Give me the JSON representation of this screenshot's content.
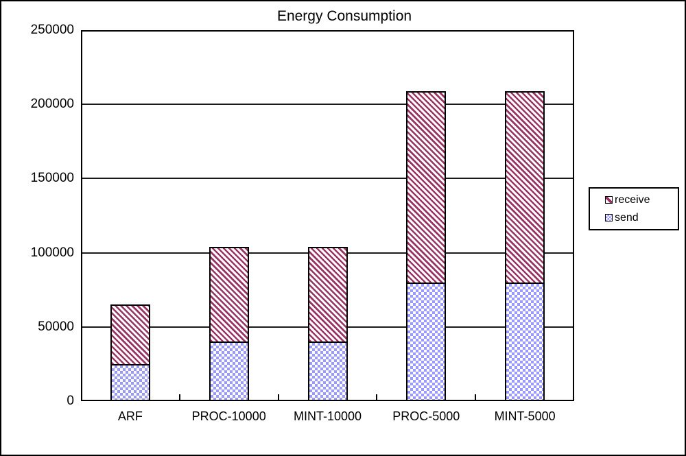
{
  "title": "Energy Consumption",
  "chart_data": {
    "type": "bar",
    "stacked": true,
    "title": "Energy Consumption",
    "categories": [
      "ARF",
      "PROC-10000",
      "MINT-10000",
      "PROC-5000",
      "MINT-5000"
    ],
    "series": [
      {
        "name": "send",
        "pattern": "checker",
        "color": "#9999FF",
        "values": [
          25000,
          40000,
          40000,
          80000,
          80000
        ]
      },
      {
        "name": "receive",
        "pattern": "diagonal-stripes",
        "color": "#993366",
        "values": [
          40000,
          64000,
          64000,
          129000,
          129000
        ]
      }
    ],
    "stack_totals": [
      65000,
      104000,
      104000,
      209000,
      209000
    ],
    "xlabel": "",
    "ylabel": "",
    "ylim": [
      0,
      250000
    ],
    "yticks": [
      0,
      50000,
      100000,
      150000,
      200000,
      250000
    ],
    "ytick_labels": [
      "0",
      "50000",
      "100000",
      "150000",
      "200000",
      "250000"
    ],
    "grid": "horizontal",
    "legend_position": "right",
    "legend_order": [
      "receive",
      "send"
    ]
  },
  "colors": {
    "receive": "#993366",
    "send": "#9999FF",
    "axis": "#000000",
    "background": "#FFFFFF"
  }
}
